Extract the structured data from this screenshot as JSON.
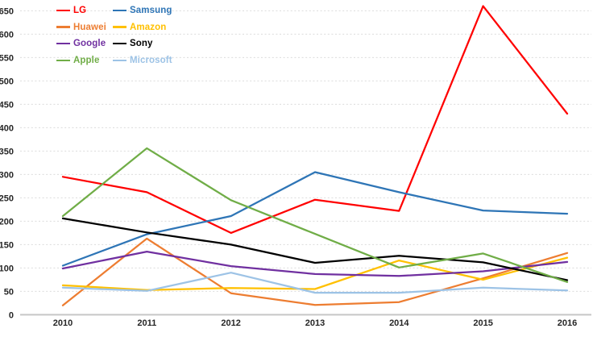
{
  "chart_data": {
    "type": "line",
    "title": "",
    "xlabel": "",
    "ylabel": "",
    "categories": [
      "2010",
      "2011",
      "2012",
      "2013",
      "2014",
      "2015",
      "2016"
    ],
    "series": [
      {
        "name": "LG",
        "color": "#FF0000",
        "values": [
          295,
          262,
          175,
          246,
          222,
          660,
          430
        ]
      },
      {
        "name": "Samsung",
        "color": "#2E75B6",
        "values": [
          105,
          172,
          211,
          305,
          262,
          223,
          216
        ]
      },
      {
        "name": "Huawei",
        "color": "#ED7D31",
        "values": [
          20,
          163,
          46,
          21,
          27,
          78,
          132
        ]
      },
      {
        "name": "Amazon",
        "color": "#FFC000",
        "values": [
          63,
          53,
          57,
          55,
          116,
          75,
          122
        ]
      },
      {
        "name": "Google",
        "color": "#7030A0",
        "values": [
          99,
          135,
          104,
          87,
          83,
          93,
          113
        ]
      },
      {
        "name": "Sony",
        "color": "#000000",
        "values": [
          206,
          176,
          150,
          111,
          126,
          112,
          74
        ]
      },
      {
        "name": "Apple",
        "color": "#70AD47",
        "values": [
          211,
          356,
          245,
          173,
          101,
          131,
          70
        ]
      },
      {
        "name": "Microsoft",
        "color": "#9DC3E6",
        "values": [
          58,
          51,
          90,
          47,
          47,
          58,
          52
        ]
      }
    ],
    "ylim": [
      0,
      650
    ],
    "ytick_step": 50,
    "ytick_labels": [
      "0",
      "50",
      "100",
      "150",
      "200",
      "250",
      "300",
      "350",
      "400",
      "450",
      "500",
      "550",
      "600",
      "650"
    ],
    "grid": "horizontal-dashed",
    "legend_position": "top-left",
    "legend_columns": 2,
    "colors": {
      "gridline": "#DBDBDB",
      "axis_line": "#C6C6C6",
      "tick_text": "#262626",
      "background": "#FFFFFF"
    }
  }
}
